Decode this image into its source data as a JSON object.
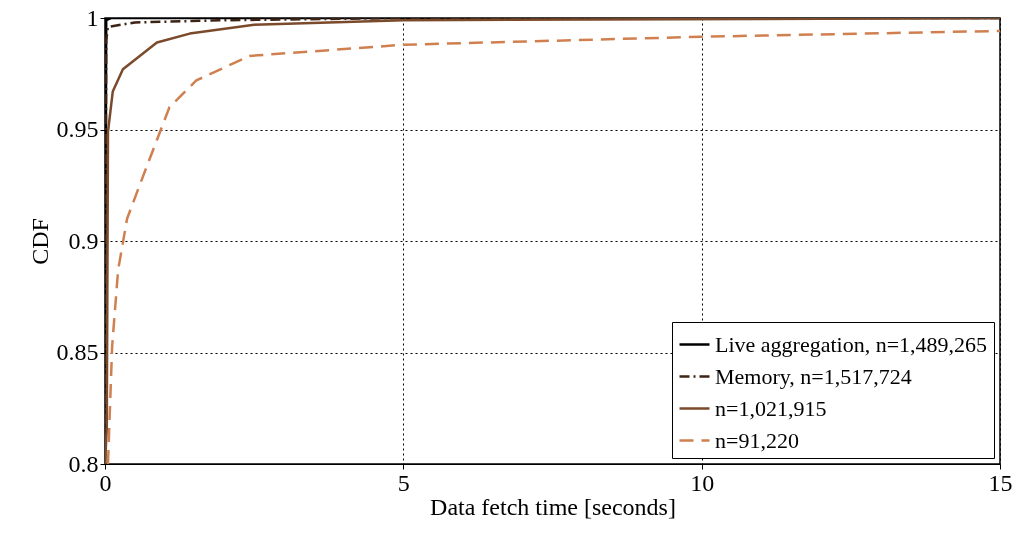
{
  "chart_data": {
    "type": "line",
    "xlabel": "Data fetch time [seconds]",
    "ylabel": "CDF",
    "xlim": [
      0,
      15
    ],
    "xticks": [
      0,
      5,
      10,
      15
    ],
    "ylim": [
      0.8,
      1
    ],
    "yticks": [
      0.8,
      0.85,
      0.9,
      0.95,
      1
    ],
    "grid": true,
    "legend": "bottom right",
    "marker": "none",
    "series": [
      {
        "name": "Live aggregation, n=1,489,265",
        "color": "#000000",
        "line_style": "solid",
        "x": [
          0,
          0.02,
          0.1,
          15
        ],
        "values": [
          0.8,
          0.999,
          1,
          1
        ]
      },
      {
        "name": "Memory, n=1,517,724",
        "color": "#3d2314",
        "line_style": "dashdot",
        "x": [
          0,
          0.02,
          0.05,
          0.5,
          2,
          5,
          15
        ],
        "values": [
          0.8,
          0.99,
          0.996,
          0.998,
          0.999,
          1,
          1
        ]
      },
      {
        "name": "n=1,021,915",
        "color": "#7b4a2b",
        "line_style": "solid",
        "x": [
          0,
          0.03,
          0.05,
          0.13,
          0.3,
          0.87,
          1.42,
          2.5,
          5,
          15
        ],
        "values": [
          0.8,
          0.816,
          0.949,
          0.967,
          0.977,
          0.989,
          0.993,
          0.997,
          0.999,
          1
        ]
      },
      {
        "name": "n=91,220",
        "color": "#d08050",
        "line_style": "dashed",
        "x": [
          0.05,
          0.12,
          0.22,
          0.37,
          0.58,
          1.08,
          1.53,
          2.42,
          5,
          10,
          15
        ],
        "values": [
          0.8,
          0.853,
          0.887,
          0.91,
          0.925,
          0.96,
          0.972,
          0.983,
          0.988,
          0.9916,
          0.9942
        ]
      }
    ]
  }
}
